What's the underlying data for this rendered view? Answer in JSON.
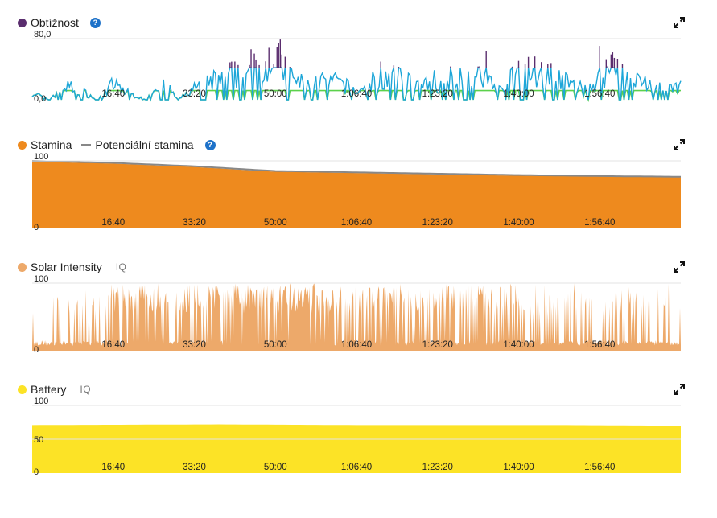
{
  "x_ticks": [
    "16:40",
    "33:20",
    "50:00",
    "1:06:40",
    "1:23:20",
    "1:40:00",
    "1:56:40"
  ],
  "panels": [
    {
      "id": "difficulty",
      "legend": [
        {
          "label": "Obtížnost",
          "color": "#5a2d6e",
          "kind": "dot"
        }
      ],
      "help": true,
      "iq": "",
      "y_labels": {
        "max": "80,0",
        "min": "0,0"
      },
      "chart_data": {
        "type": "line",
        "title": "Obtížnost",
        "ylim": [
          0,
          80
        ],
        "x_range_seconds": [
          0,
          8000
        ],
        "x_tick_labels": [
          "16:40",
          "33:20",
          "50:00",
          "1:06:40",
          "1:23:20",
          "1:40:00",
          "1:56:40"
        ],
        "colormap": {
          "low": "#5cd14c",
          "mid": "#1da6d8",
          "high": "#5a2d6e"
        },
        "series": [
          {
            "name": "Obtížnost",
            "x": [
              0,
              200,
              400,
              600,
              800,
              1000,
              1200,
              1400,
              1600,
              1800,
              2000,
              2200,
              2400,
              2600,
              2800,
              3000,
              3200,
              3400,
              3600,
              3800,
              4000,
              4200,
              4400,
              4600,
              4800,
              5000,
              5200,
              5400,
              5600,
              5800,
              6000,
              6200,
              6400,
              6600,
              6800,
              7000,
              7200,
              7400,
              7600,
              7800,
              8000
            ],
            "values": [
              10,
              0,
              18,
              12,
              0,
              20,
              8,
              0,
              25,
              0,
              15,
              22,
              35,
              30,
              55,
              60,
              28,
              18,
              25,
              22,
              10,
              20,
              30,
              25,
              18,
              20,
              35,
              30,
              28,
              10,
              40,
              38,
              32,
              22,
              10,
              30,
              55,
              25,
              22,
              12,
              18
            ]
          }
        ]
      }
    },
    {
      "id": "stamina",
      "legend": [
        {
          "label": "Stamina",
          "color": "#ee8a1e",
          "kind": "dot"
        },
        {
          "label": "Potenciální stamina",
          "color": "#888888",
          "kind": "dash"
        }
      ],
      "help": true,
      "iq": "",
      "y_labels": {
        "max": "100",
        "min": "0"
      },
      "chart_data": {
        "type": "area",
        "title": "Stamina",
        "ylim": [
          0,
          100
        ],
        "x_range_seconds": [
          0,
          8000
        ],
        "x_tick_labels": [
          "16:40",
          "33:20",
          "50:00",
          "1:06:40",
          "1:23:20",
          "1:40:00",
          "1:56:40"
        ],
        "series": [
          {
            "name": "Stamina",
            "color": "#ee8a1e",
            "x": [
              0,
              300,
              1000,
              2000,
              2700,
              3000,
              4000,
              5000,
              6000,
              7000,
              8000
            ],
            "values": [
              100,
              98,
              96,
              91,
              86,
              84,
              82,
              80,
              78,
              77,
              76
            ]
          },
          {
            "name": "Potenciální stamina",
            "color": "#888888",
            "x": [
              0,
              300,
              1000,
              2000,
              2700,
              3000,
              4000,
              5000,
              6000,
              7000,
              8000
            ],
            "values": [
              100,
              99,
              97,
              92,
              87,
              85,
              83,
              81,
              79,
              77.5,
              76.5
            ]
          }
        ]
      }
    },
    {
      "id": "solar",
      "legend": [
        {
          "label": "Solar Intensity",
          "color": "#eda96a",
          "kind": "dot"
        }
      ],
      "help": false,
      "iq": "IQ",
      "y_labels": {
        "max": "100",
        "min": "0"
      },
      "chart_data": {
        "type": "area",
        "title": "Solar Intensity",
        "ylim": [
          0,
          100
        ],
        "x_range_seconds": [
          0,
          8000
        ],
        "x_tick_labels": [
          "16:40",
          "33:20",
          "50:00",
          "1:06:40",
          "1:23:20",
          "1:40:00",
          "1:56:40"
        ],
        "series": [
          {
            "name": "Solar Intensity",
            "color": "#eda96a",
            "baseline_level": 12,
            "spike_level": 100,
            "spike_density_by_segment": [
              0.15,
              0.35,
              0.7,
              0.55,
              0.65,
              0.75,
              0.85,
              0.6,
              0.8,
              0.55,
              0.5,
              0.6,
              0.4,
              0.35,
              0.3,
              0.2
            ]
          }
        ]
      }
    },
    {
      "id": "battery",
      "legend": [
        {
          "label": "Battery",
          "color": "#fce326",
          "kind": "dot"
        }
      ],
      "help": false,
      "iq": "IQ",
      "y_labels": {
        "max": "100",
        "mid": "50",
        "min": "0"
      },
      "chart_data": {
        "type": "area",
        "title": "Battery",
        "ylim": [
          0,
          100
        ],
        "x_range_seconds": [
          0,
          8000
        ],
        "x_tick_labels": [
          "16:40",
          "33:20",
          "50:00",
          "1:06:40",
          "1:23:20",
          "1:40:00",
          "1:56:40"
        ],
        "series": [
          {
            "name": "Battery",
            "color": "#fce326",
            "x": [
              0,
              2300,
              4000,
              6500,
              8000
            ],
            "values": [
              71,
              72,
              71,
              71,
              70
            ]
          }
        ]
      }
    }
  ]
}
